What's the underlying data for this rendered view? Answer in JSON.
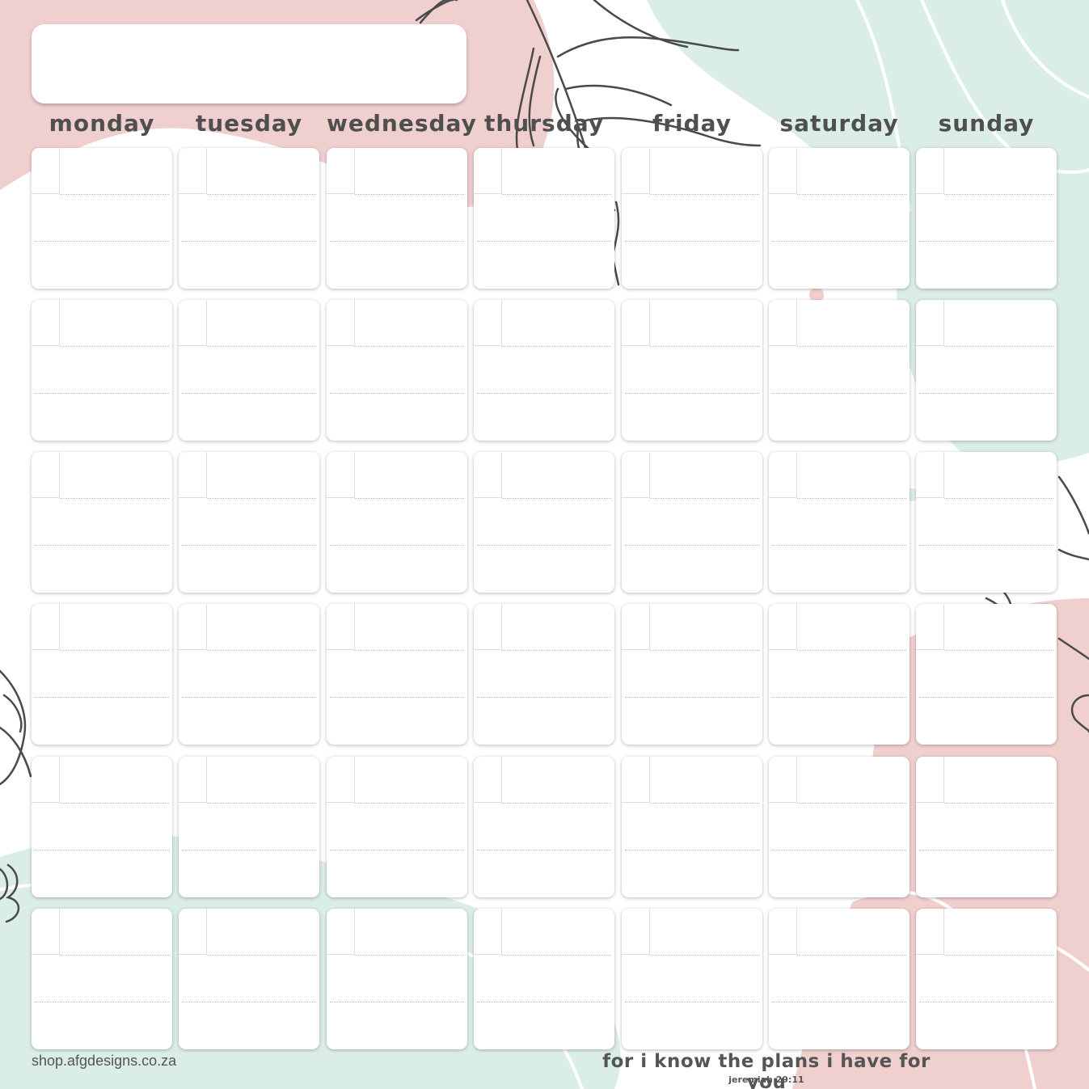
{
  "colors": {
    "pink": "#f0cfcf",
    "mint": "#dbeee6",
    "line_art": "#4a4a4a",
    "text": "#555555"
  },
  "weekdays": [
    "Monday",
    "Tuesday",
    "Wednesday",
    "Thursday",
    "Friday",
    "Saturday",
    "Sunday"
  ],
  "footer": {
    "website": "shop.afgdesigns.co.za",
    "quote": "for I know the plans I have for you",
    "reference": "Jeremiah 29:11"
  }
}
